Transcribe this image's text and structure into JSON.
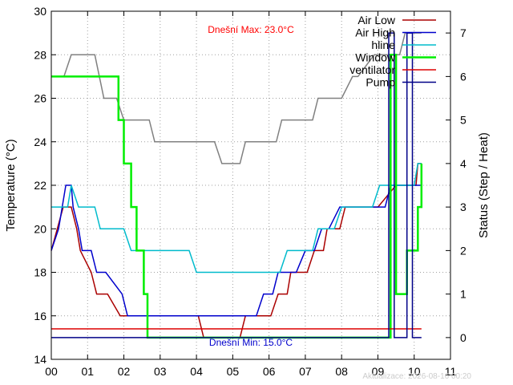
{
  "chart_data": {
    "type": "line",
    "ylabel": "Temperature (°C)",
    "y2label": "Status (Step / Heat)",
    "xlim": [
      0,
      11
    ],
    "ylim": [
      14,
      30
    ],
    "y2lim": [
      -0.5,
      7.5
    ],
    "x_ticks": [
      "00",
      "01",
      "02",
      "03",
      "04",
      "05",
      "06",
      "07",
      "08",
      "09",
      "10",
      "11"
    ],
    "y_ticks": [
      "14",
      "16",
      "18",
      "20",
      "22",
      "24",
      "26",
      "28",
      "30"
    ],
    "y2_ticks": [
      "0",
      "1",
      "2",
      "3",
      "4",
      "5",
      "6",
      "7"
    ],
    "grid": true,
    "legend_position": "top-right",
    "annotations": {
      "max_label": "Dnešní Max: 23.0°C",
      "min_label": "Dnešní Min: 15.0°C",
      "updated_label": "Aktualizace: 2026-08-16 00:20"
    },
    "colors": {
      "air_low": "#aa0000",
      "air_high": "#0000cc",
      "hline": "#00bbcc",
      "gray": "#808080",
      "window": "#00ee00",
      "ventilator": "#dd0000",
      "pump": "#000088",
      "max_text": "#ff0000",
      "min_text": "#0000cc",
      "updated_text": "#cccccc"
    },
    "series": [
      {
        "name": "Air Low",
        "key": "air_low",
        "axis": "y",
        "x": [
          0,
          0.33,
          0.55,
          0.7,
          0.8,
          1.1,
          1.25,
          1.55,
          1.9,
          2.1,
          4.05,
          4.2,
          5.2,
          5.35,
          6.05,
          6.25,
          6.5,
          6.6,
          7.05,
          7.25,
          7.5,
          7.6,
          7.95,
          8.1,
          8.45,
          8.65,
          9.0,
          9.5,
          10.05,
          10.1,
          10.2
        ],
        "values": [
          19,
          21,
          21,
          20,
          19,
          18,
          17,
          17,
          16,
          16,
          16,
          15,
          15,
          16,
          16,
          17,
          17,
          18,
          18,
          19,
          19,
          20,
          20,
          21,
          21,
          21,
          21,
          22,
          22,
          23,
          23
        ]
      },
      {
        "name": "Air High",
        "key": "air_high",
        "axis": "y",
        "x": [
          0,
          0.2,
          0.4,
          0.55,
          0.6,
          0.75,
          0.85,
          1.1,
          1.25,
          1.5,
          1.95,
          2.1,
          5.65,
          5.85,
          6.1,
          6.25,
          6.5,
          6.75,
          7.0,
          7.25,
          7.45,
          7.65,
          7.95,
          8.1,
          8.45,
          8.65,
          9.0,
          9.2,
          9.35,
          10.1,
          10.2
        ],
        "values": [
          19,
          20,
          22,
          22,
          21,
          20,
          19,
          19,
          18,
          18,
          17,
          16,
          16,
          17,
          17,
          18,
          18,
          18,
          19,
          19,
          20,
          20,
          21,
          21,
          21,
          21,
          21,
          21,
          22,
          22,
          22
        ]
      },
      {
        "name": "hline",
        "key": "hline",
        "axis": "y",
        "x": [
          0,
          0.45,
          0.55,
          0.75,
          1.2,
          1.35,
          2.0,
          2.2,
          3.8,
          4.0,
          6.3,
          6.5,
          7.2,
          7.35,
          7.6,
          7.8,
          8.0,
          8.15,
          8.85,
          9.05,
          10.0,
          10.1,
          10.2
        ],
        "values": [
          21,
          21,
          22,
          21,
          21,
          20,
          20,
          19,
          19,
          18,
          18,
          19,
          19,
          20,
          20,
          20,
          21,
          21,
          21,
          22,
          22,
          23,
          23
        ]
      },
      {
        "name": "",
        "key": "gray",
        "axis": "y",
        "x": [
          0,
          0.35,
          0.55,
          1.2,
          1.45,
          1.8,
          2.0,
          2.3,
          2.7,
          2.85,
          4.5,
          4.7,
          5.2,
          5.35,
          6.2,
          6.35,
          7.2,
          7.35,
          7.8,
          8.0,
          8.3,
          8.45,
          8.9,
          9.05,
          9.6,
          9.75,
          10.05,
          10.2
        ],
        "values": [
          27,
          27,
          28,
          28,
          26,
          26,
          25,
          25,
          25,
          24,
          24,
          23,
          23,
          24,
          24,
          25,
          25,
          26,
          26,
          26,
          27,
          27,
          28,
          28,
          28,
          29,
          29,
          29
        ]
      },
      {
        "name": "Window",
        "key": "window",
        "axis": "y2",
        "x": [
          0,
          1.85,
          1.85,
          2.0,
          2.0,
          2.2,
          2.2,
          2.35,
          2.35,
          2.55,
          2.55,
          2.65,
          2.65,
          9.35,
          9.35,
          9.5,
          9.5,
          9.8,
          9.8,
          10.1,
          10.1,
          10.2,
          10.2
        ],
        "values": [
          6,
          6,
          5,
          5,
          4,
          4,
          3,
          3,
          2,
          2,
          1,
          1,
          0,
          0,
          6.5,
          6.5,
          1,
          1,
          2,
          2,
          3,
          3,
          4
        ]
      },
      {
        "name": "ventilator",
        "key": "ventilator",
        "axis": "y2",
        "x": [
          0,
          10.2
        ],
        "values": [
          0.2,
          0.2
        ]
      },
      {
        "name": "Pump",
        "key": "pump",
        "axis": "y2",
        "x": [
          0,
          9.3,
          9.3,
          9.45,
          9.45,
          9.8,
          9.8,
          9.95,
          9.95,
          10.2
        ],
        "values": [
          0,
          0,
          7,
          7,
          0,
          0,
          7,
          7,
          0,
          0
        ]
      }
    ]
  }
}
